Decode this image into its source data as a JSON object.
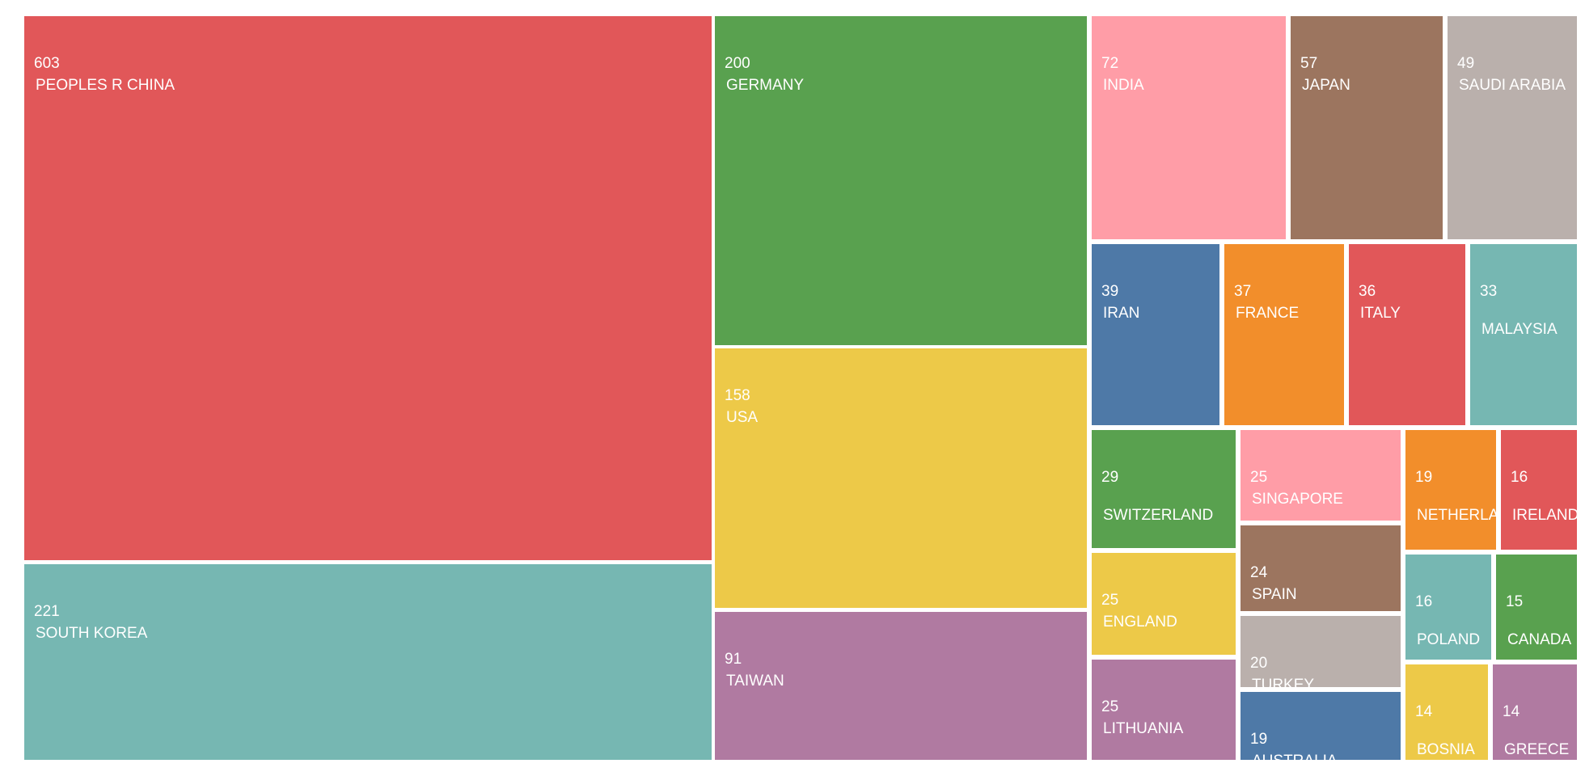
{
  "chart_data": {
    "type": "treemap",
    "items": [
      {
        "name": "PEOPLES R CHINA",
        "value": 603,
        "color": "#e15759"
      },
      {
        "name": "SOUTH KOREA",
        "value": 221,
        "color": "#76b7b2"
      },
      {
        "name": "GERMANY",
        "value": 200,
        "color": "#59a14f"
      },
      {
        "name": "USA",
        "value": 158,
        "color": "#edc948"
      },
      {
        "name": "TAIWAN",
        "value": 91,
        "color": "#b07aa1"
      },
      {
        "name": "INDIA",
        "value": 72,
        "color": "#ff9da7"
      },
      {
        "name": "JAPAN",
        "value": 57,
        "color": "#9c755f"
      },
      {
        "name": "SAUDI ARABIA",
        "value": 49,
        "color": "#bab0ac"
      },
      {
        "name": "IRAN",
        "value": 39,
        "color": "#4e79a7"
      },
      {
        "name": "FRANCE",
        "value": 37,
        "color": "#f28e2b"
      },
      {
        "name": "ITALY",
        "value": 36,
        "color": "#e15759"
      },
      {
        "name": "MALAYSIA",
        "value": 33,
        "color": "#76b7b2"
      },
      {
        "name": "SWITZERLAND",
        "value": 29,
        "color": "#59a14f"
      },
      {
        "name": "SINGAPORE",
        "value": 25,
        "color": "#ff9da7"
      },
      {
        "name": "NETHERLANDS",
        "value": 19,
        "color": "#f28e2b"
      },
      {
        "name": "IRELAND",
        "value": 16,
        "color": "#e15759"
      },
      {
        "name": "ENGLAND",
        "value": 25,
        "color": "#edc948"
      },
      {
        "name": "SPAIN",
        "value": 24,
        "color": "#9c755f"
      },
      {
        "name": "POLAND",
        "value": 16,
        "color": "#76b7b2"
      },
      {
        "name": "CANADA",
        "value": 15,
        "color": "#59a14f"
      },
      {
        "name": "TURKEY",
        "value": 20,
        "color": "#bab0ac"
      },
      {
        "name": "LITHUANIA",
        "value": 25,
        "color": "#b07aa1"
      },
      {
        "name": "AUSTRALIA",
        "value": 19,
        "color": "#4e79a7"
      },
      {
        "name": "BOSNIA",
        "value": 14,
        "color": "#edc948"
      },
      {
        "name": "GREECE",
        "value": 14,
        "color": "#b07aa1"
      }
    ]
  }
}
